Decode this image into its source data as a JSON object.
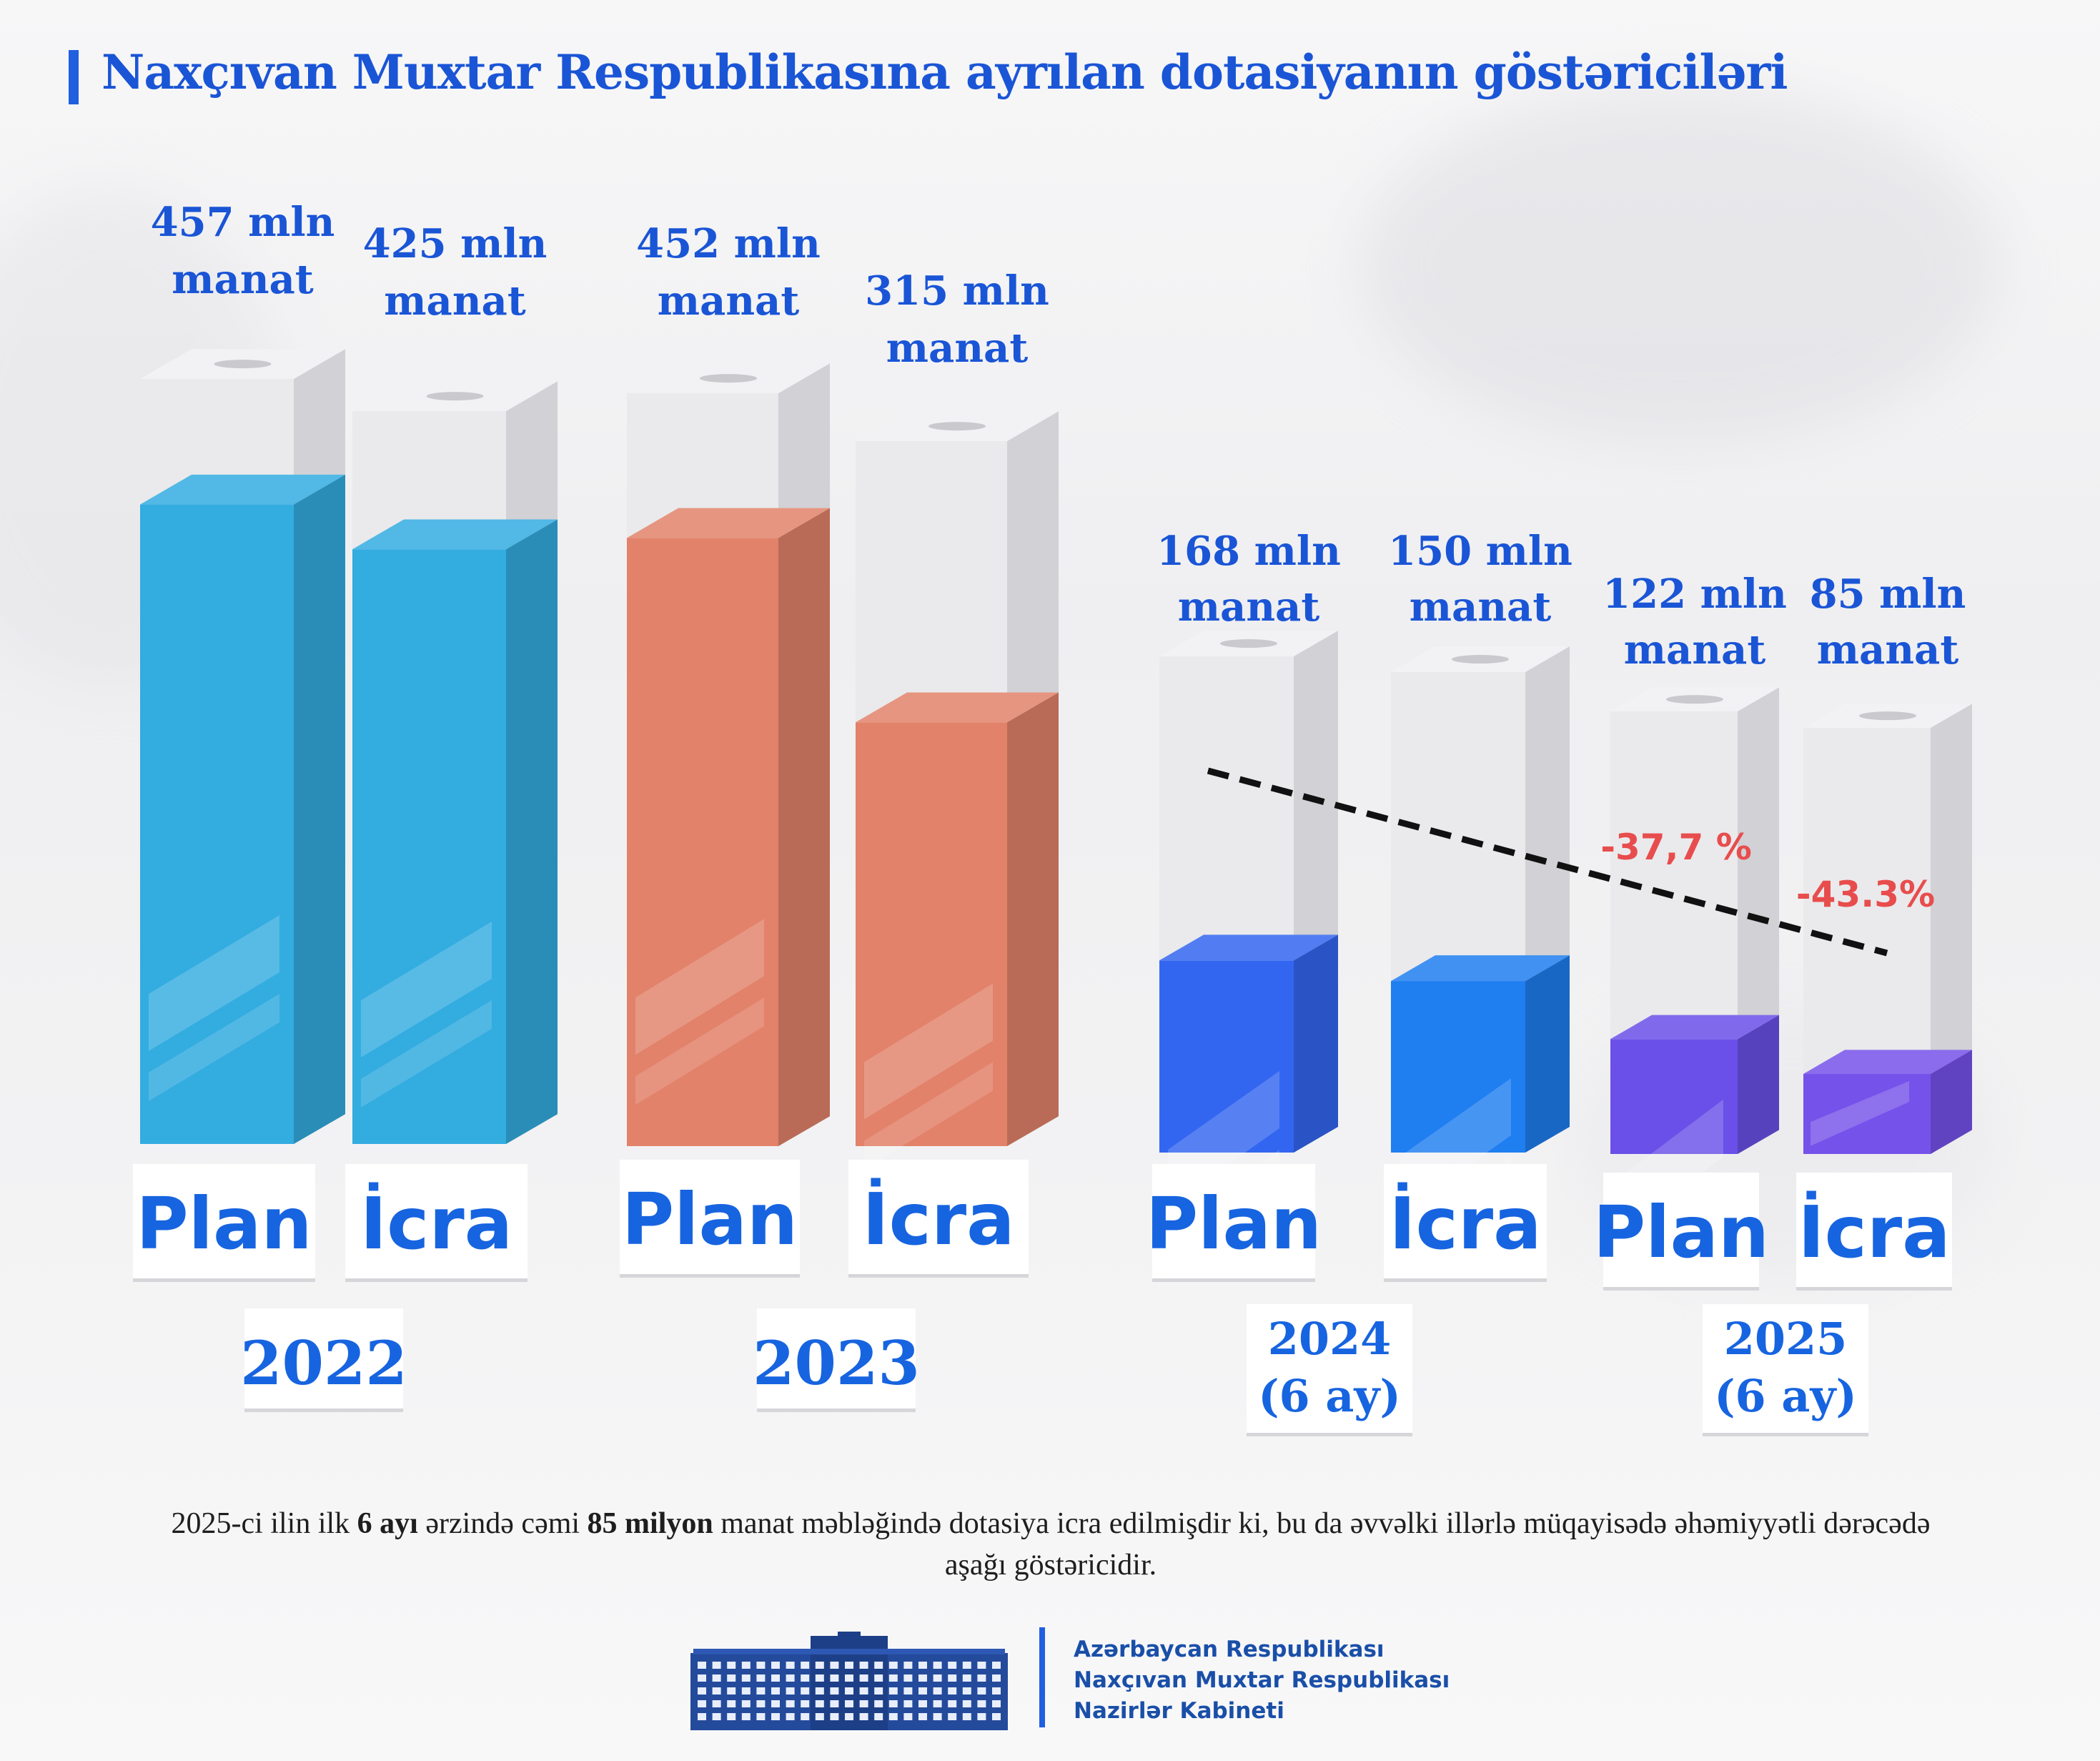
{
  "page": {
    "title": "Naxçıvan Muxtar Respublikasına ayrılan dotasiyanın  göstəriciləri"
  },
  "chart_data": {
    "type": "bar",
    "title": "Naxçıvan Muxtar Respublikasına ayrılan dotasiyanın  göstəriciləri",
    "unit": "mln manat",
    "groups": [
      {
        "year_label": [
          "2022"
        ],
        "bars": [
          {
            "label": "Plan",
            "value": 457,
            "value_text": [
              "457 mln",
              "manat"
            ],
            "color": "#33ace0"
          },
          {
            "label": "İcra",
            "value": 425,
            "value_text": [
              "425 mln",
              "manat"
            ],
            "color": "#33ace0"
          }
        ]
      },
      {
        "year_label": [
          "2023"
        ],
        "bars": [
          {
            "label": "Plan",
            "value": 452,
            "value_text": [
              "452 mln",
              "manat"
            ],
            "color": "#e2826a"
          },
          {
            "label": "İcra",
            "value": 315,
            "value_text": [
              "315 mln",
              "manat"
            ],
            "color": "#e2826a"
          }
        ]
      },
      {
        "year_label": [
          "2024",
          "(6 ay)"
        ],
        "bars": [
          {
            "label": "Plan",
            "value": 168,
            "value_text": [
              "168 mln",
              "manat"
            ],
            "color": "#3366f0"
          },
          {
            "label": "İcra",
            "value": 150,
            "value_text": [
              "150 mln",
              "manat"
            ],
            "color": "#1f7ef0"
          }
        ]
      },
      {
        "year_label": [
          "2025",
          "(6 ay)"
        ],
        "bars": [
          {
            "label": "Plan",
            "value": 122,
            "value_text": [
              "122 mln",
              "manat"
            ],
            "color": "#6a50e8"
          },
          {
            "label": "İcra",
            "value": 85,
            "value_text": [
              "85 mln",
              "manat"
            ],
            "color": "#7552ea"
          }
        ]
      }
    ],
    "annotations": [
      "-37,7 %",
      "-43.3%"
    ],
    "trend_line": "dashed"
  },
  "note": {
    "parts": [
      {
        "text": "2025-ci ilin ilk ",
        "bold": false
      },
      {
        "text": "6 ayı",
        "bold": true
      },
      {
        "text": " ərzində cəmi ",
        "bold": false
      },
      {
        "text": "85 milyon",
        "bold": true
      },
      {
        "text": " manat məbləğində dotasiya icra edilmişdir ki, bu da əvvəlki illərlə müqayisədə əhəmiyyətli dərəcədə aşağı göstəricidir.",
        "bold": false
      }
    ]
  },
  "footer": {
    "org_lines": [
      "Azərbaycan Respublikası",
      "Naxçıvan Muxtar Respublikası",
      "Nazirlər Kabineti"
    ],
    "logo_icon": "government-building-icon"
  }
}
